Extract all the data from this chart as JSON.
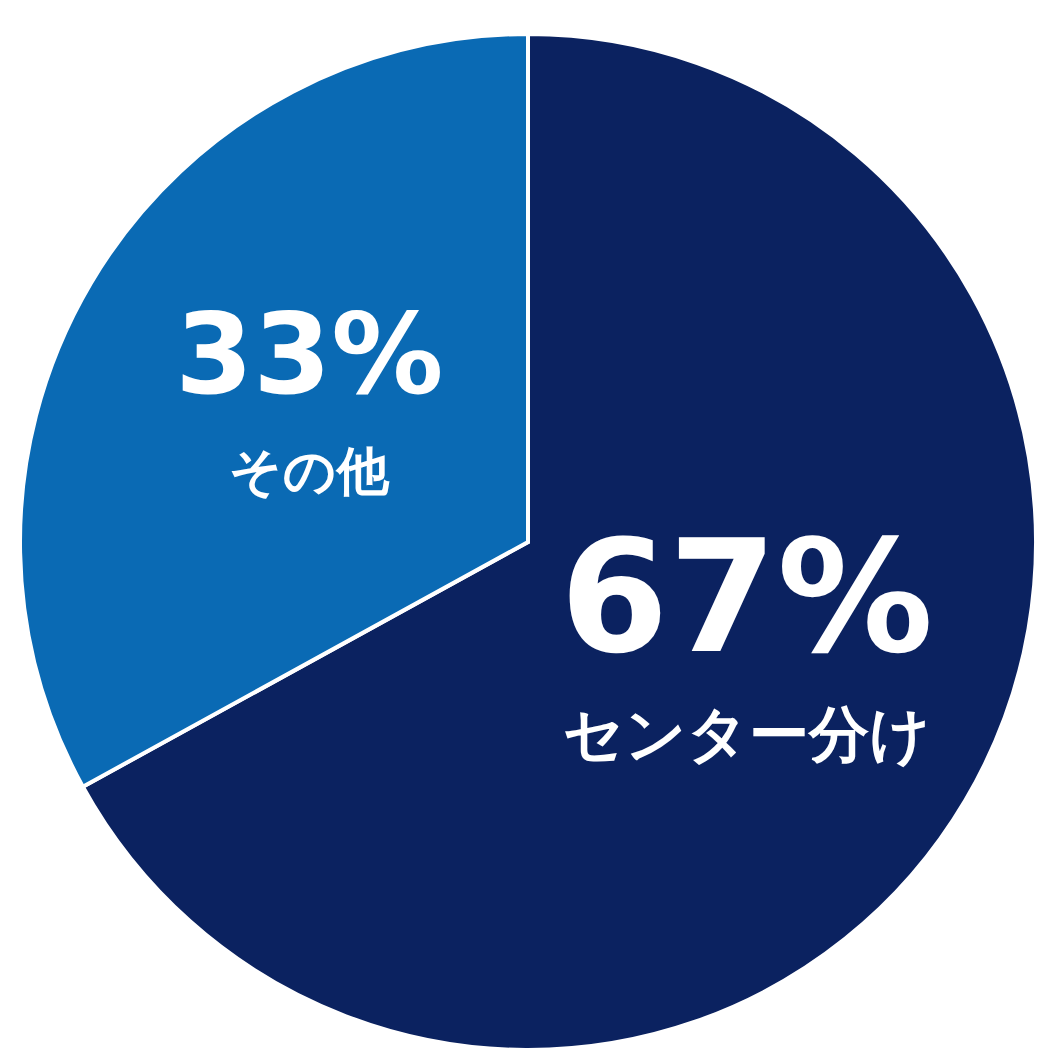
{
  "chart_data": {
    "type": "pie",
    "categories": [
      "センター分け",
      "その他"
    ],
    "values": [
      67,
      33
    ],
    "colors": [
      "#0b2260",
      "#0a6ab4"
    ],
    "value_labels": [
      "67%",
      "33%"
    ],
    "legend": false
  }
}
